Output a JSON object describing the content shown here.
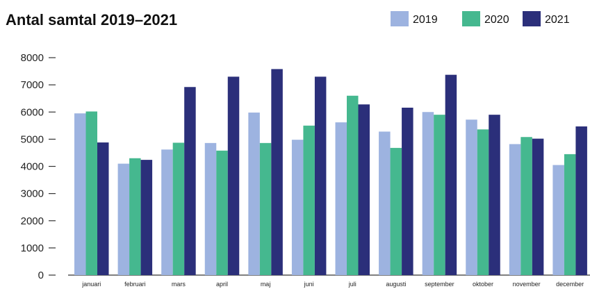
{
  "chart_data": {
    "type": "bar",
    "title": "Antal samtal 2019–2021",
    "xlabel": "",
    "ylabel": "",
    "ylim": [
      0,
      8000
    ],
    "yticks": [
      0,
      1000,
      2000,
      3000,
      4000,
      5000,
      6000,
      7000,
      8000
    ],
    "grid": false,
    "legend_position": "top-right",
    "categories": [
      "januari",
      "februari",
      "mars",
      "april",
      "maj",
      "juni",
      "juli",
      "augusti",
      "september",
      "oktober",
      "november",
      "december"
    ],
    "series": [
      {
        "name": "2019",
        "color": "#9db3e0",
        "values": [
          5950,
          4100,
          4620,
          4860,
          5980,
          4980,
          5620,
          5280,
          6000,
          5720,
          4820,
          4050
        ]
      },
      {
        "name": "2020",
        "color": "#45b88f",
        "values": [
          6020,
          4300,
          4870,
          4580,
          4860,
          5500,
          6600,
          4680,
          5900,
          5360,
          5080,
          4450
        ]
      },
      {
        "name": "2021",
        "color": "#2b2f7a",
        "values": [
          4880,
          4240,
          6920,
          7300,
          7580,
          7300,
          6280,
          6160,
          7370,
          5900,
          5020,
          5470
        ]
      }
    ]
  }
}
